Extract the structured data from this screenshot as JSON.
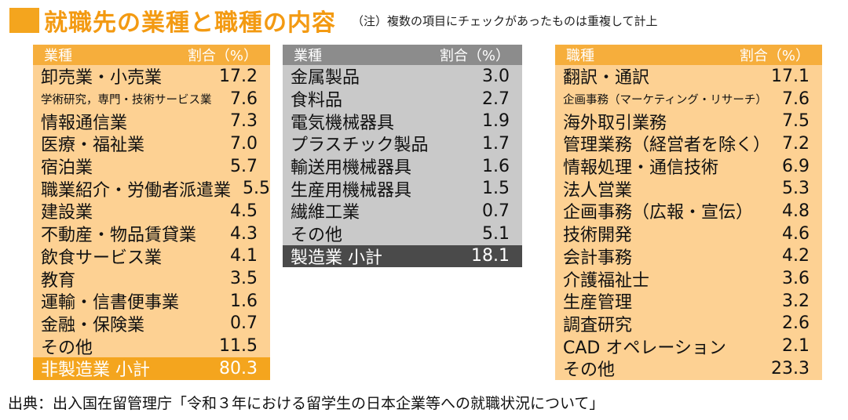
{
  "header": {
    "title": "就職先の業種と職種の内容",
    "note": "（注）複数の項目にチェックがあったものは重複して計上"
  },
  "colors": {
    "accent": "#F4A51E",
    "header_orange": "#F6AE3C",
    "body_orange": "#FDD193",
    "header_gray": "#8C8C8C",
    "body_gray": "#C9C9C9",
    "total_gray": "#4A4A4A",
    "total_orange": "#F4A51E"
  },
  "source": "出典：出入国在留管理庁「令和３年における留学生の日本企業等への就職状況について」",
  "chart_data": [
    {
      "type": "table",
      "columns": [
        "業種",
        "割合（%）"
      ],
      "rows": [
        {
          "name": "卸売業・小売業",
          "value": "17.2"
        },
        {
          "name": "学術研究，専門・技術サービス業",
          "value": "7.6"
        },
        {
          "name": "情報通信業",
          "value": "7.3"
        },
        {
          "name": "医療・福祉業",
          "value": "7.0"
        },
        {
          "name": "宿泊業",
          "value": "5.7"
        },
        {
          "name": "職業紹介・労働者派遣業",
          "value": "5.5"
        },
        {
          "name": "建設業",
          "value": "4.5"
        },
        {
          "name": "不動産・物品賃貸業",
          "value": "4.3"
        },
        {
          "name": "飲食サービス業",
          "value": "4.1"
        },
        {
          "name": "教育",
          "value": "3.5"
        },
        {
          "name": "運輸・信書便事業",
          "value": "1.6"
        },
        {
          "name": "金融・保険業",
          "value": "0.7"
        },
        {
          "name": "その他",
          "value": "11.5"
        }
      ],
      "total": {
        "name": "非製造業 小計",
        "value": "80.3"
      }
    },
    {
      "type": "table",
      "columns": [
        "業種",
        "割合（%）"
      ],
      "rows": [
        {
          "name": "金属製品",
          "value": "3.0"
        },
        {
          "name": "食料品",
          "value": "2.7"
        },
        {
          "name": "電気機械器具",
          "value": "1.9"
        },
        {
          "name": "プラスチック製品",
          "value": "1.7"
        },
        {
          "name": "輸送用機械器具",
          "value": "1.6"
        },
        {
          "name": "生産用機械器具",
          "value": "1.5"
        },
        {
          "name": "繊維工業",
          "value": "0.7"
        },
        {
          "name": "その他",
          "value": "5.1"
        }
      ],
      "total": {
        "name": "製造業 小計",
        "value": "18.1"
      }
    },
    {
      "type": "table",
      "columns": [
        "職種",
        "割合（%）"
      ],
      "rows": [
        {
          "name": "翻訳・通訳",
          "value": "17.1"
        },
        {
          "name": "企画事務（マーケティング・リサーチ）",
          "value": "7.6"
        },
        {
          "name": "海外取引業務",
          "value": "7.5"
        },
        {
          "name": "管理業務（経営者を除く）",
          "value": "7.2"
        },
        {
          "name": "情報処理・通信技術",
          "value": "6.9"
        },
        {
          "name": "法人営業",
          "value": "5.3"
        },
        {
          "name": "企画事務（広報・宣伝）",
          "value": "4.8"
        },
        {
          "name": "技術開発",
          "value": "4.6"
        },
        {
          "name": "会計事務",
          "value": "4.2"
        },
        {
          "name": "介護福祉士",
          "value": "3.6"
        },
        {
          "name": "生産管理",
          "value": "3.2"
        },
        {
          "name": "調査研究",
          "value": "2.6"
        },
        {
          "name": "CAD オペレーション",
          "value": "2.1"
        },
        {
          "name": "その他",
          "value": "23.3"
        }
      ]
    }
  ]
}
